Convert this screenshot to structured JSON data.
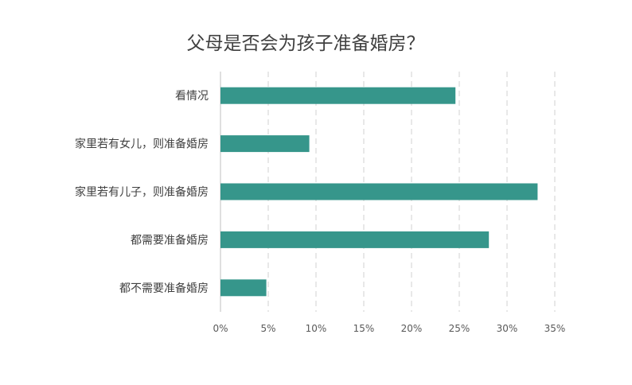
{
  "chart_data": {
    "type": "bar",
    "orientation": "horizontal",
    "title": "父母是否会为孩子准备婚房？",
    "categories": [
      "看情况",
      "家里若有女儿，则准备婚房",
      "家里若有儿子，则准备婚房",
      "都需要准备婚房",
      "都不需要准备婚房"
    ],
    "values": [
      24.6,
      9.3,
      33.2,
      28.1,
      4.8
    ],
    "xlim": [
      0,
      35
    ],
    "ticks": [
      "0%",
      "5%",
      "10%",
      "15%",
      "20%",
      "25%",
      "30%",
      "35%"
    ],
    "tick_values": [
      0,
      5,
      10,
      15,
      20,
      25,
      30,
      35
    ],
    "grid": true,
    "legend": false,
    "bar_color": "#36968b"
  }
}
